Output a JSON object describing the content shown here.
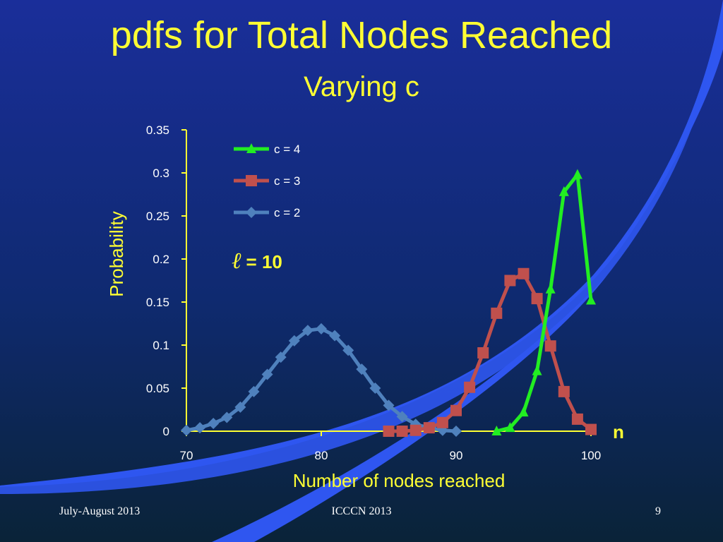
{
  "slide": {
    "title": "pdfs for Total Nodes Reached",
    "subtitle": "Varying c",
    "footer_left": "July-August 2013",
    "footer_center": "ICCCN 2013",
    "page_number": "9"
  },
  "colors": {
    "background_top": "#1A2E9A",
    "background_bottom": "#0A2338",
    "swoosh": "#2F56F0",
    "title": "#FFFF33",
    "axis": "#FFFF33",
    "tick_text": "#FFFFFF"
  },
  "chart_data": {
    "type": "line",
    "xlabel": "Number of nodes reached",
    "ylabel": "Probability",
    "x_axis_suffix": "n",
    "annotation": {
      "symbol": "ℓ",
      "text": " = 10"
    },
    "xlim": [
      70,
      100
    ],
    "ylim": [
      0,
      0.35
    ],
    "x_ticks": [
      70,
      80,
      90,
      100
    ],
    "y_ticks": [
      0,
      0.05,
      0.1,
      0.15,
      0.2,
      0.25,
      0.3,
      0.35
    ],
    "y_tick_labels": [
      "0",
      "0.05",
      "0.1",
      "0.15",
      "0.2",
      "0.25",
      "0.3",
      "0.35"
    ],
    "legend_position": "top-left",
    "series": [
      {
        "name": "c = 4",
        "color": "#22EE22",
        "marker": "triangle",
        "x": [
          93,
          94,
          95,
          96,
          97,
          98,
          99,
          100
        ],
        "y": [
          0,
          0.004,
          0.022,
          0.07,
          0.165,
          0.278,
          0.298,
          0.152
        ]
      },
      {
        "name": "c = 3",
        "color": "#C0504D",
        "marker": "square",
        "x": [
          85,
          86,
          87,
          88,
          89,
          90,
          91,
          92,
          93,
          94,
          95,
          96,
          97,
          98,
          99,
          100
        ],
        "y": [
          0,
          0,
          0.001,
          0.004,
          0.01,
          0.024,
          0.051,
          0.091,
          0.137,
          0.175,
          0.183,
          0.154,
          0.099,
          0.046,
          0.014,
          0.002
        ]
      },
      {
        "name": "c = 2",
        "color": "#4F81BD",
        "marker": "diamond",
        "x": [
          70,
          71,
          72,
          73,
          74,
          75,
          76,
          77,
          78,
          79,
          80,
          81,
          82,
          83,
          84,
          85,
          86,
          87,
          88,
          89,
          90
        ],
        "y": [
          0.001,
          0.004,
          0.009,
          0.016,
          0.028,
          0.046,
          0.066,
          0.086,
          0.105,
          0.117,
          0.119,
          0.111,
          0.094,
          0.072,
          0.05,
          0.03,
          0.017,
          0.008,
          0.004,
          0.001,
          0
        ]
      }
    ]
  }
}
